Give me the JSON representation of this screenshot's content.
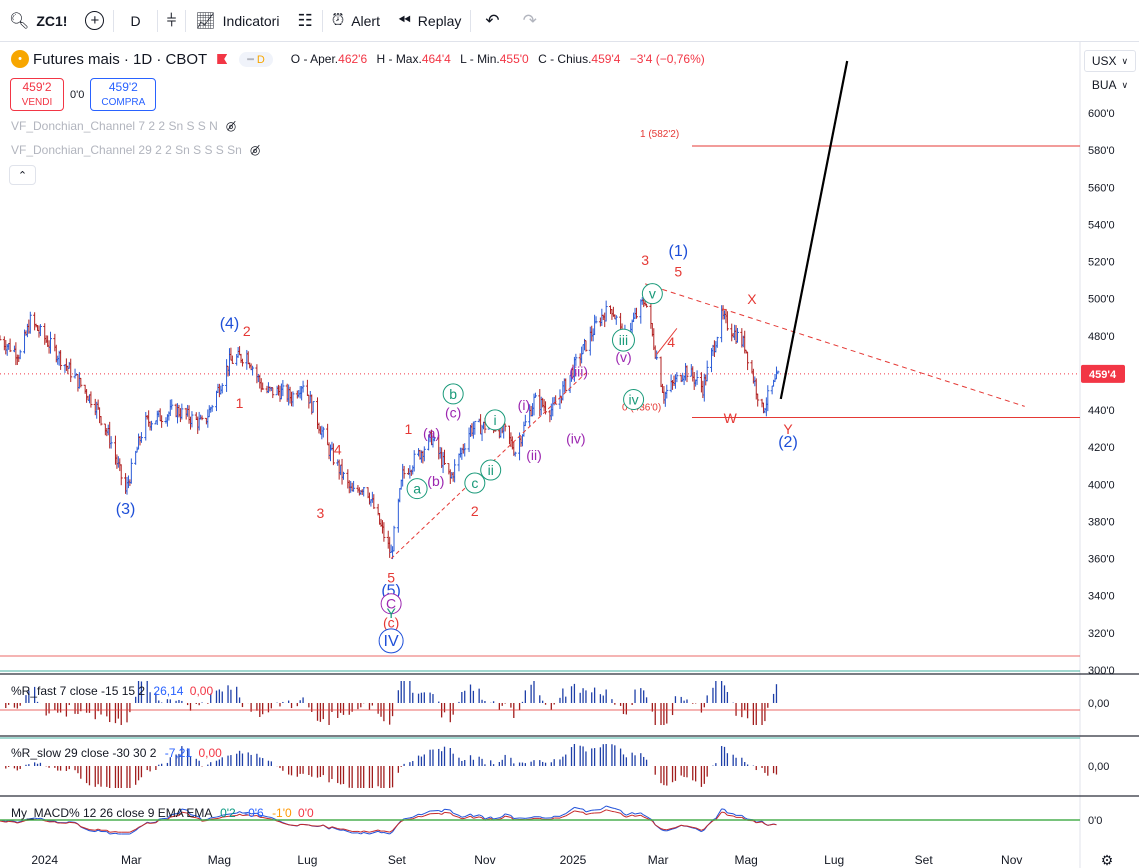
{
  "toolbar": {
    "symbol": "ZC1!",
    "interval": "D",
    "indicators_label": "Indicatori",
    "alert_label": "Alert",
    "replay_label": "Replay"
  },
  "legend": {
    "title": "Futures mais · 1D · CBOT",
    "pill": "D",
    "open_key": "O - Aper.",
    "open_val": "462'6",
    "high_key": "H - Max.",
    "high_val": "464'4",
    "low_key": "L - Min.",
    "low_val": "455'0",
    "close_key": "C - Chius.",
    "close_val": "459'4",
    "change": "−3'4 (−0,76%)"
  },
  "trade": {
    "sell_price": "459'2",
    "sell_label": "VENDI",
    "spread": "0'0",
    "buy_price": "459'2",
    "buy_label": "COMPRA"
  },
  "indicators": {
    "donchian_fast": "VF_Donchian_Channel 7 2 2 Sn S S N",
    "donchian_slow": "VF_Donchian_Channel 29 2 2 Sn S S S Sn"
  },
  "scale": {
    "currency": "USX",
    "unit": "BUA"
  },
  "colors": {
    "up": "#2a5bd7",
    "down": "#b22222",
    "wave_red": "#e53935",
    "wave_blue": "#1e4fd8",
    "wave_green": "#1a9a7a",
    "wave_purple": "#9c27b0",
    "price_line": "#f23645"
  },
  "chart_data": [
    {
      "type": "candlestick",
      "title": "Futures mais · 1D · CBOT",
      "price_scale": {
        "ylim": [
          296,
          624
        ],
        "ticks": [
          "300'0",
          "320'0",
          "340'0",
          "360'0",
          "380'0",
          "400'0",
          "420'0",
          "440'0",
          "460'0",
          "480'0",
          "500'0",
          "520'0",
          "540'0",
          "560'0",
          "580'0",
          "600'0"
        ]
      },
      "x_ticks": [
        "2024",
        "Mar",
        "Mag",
        "Lug",
        "Set",
        "Nov",
        "2025",
        "Mar",
        "Mag",
        "Lug",
        "Set",
        "Nov"
      ],
      "last_price": "459'4",
      "last_price_value": 459.5,
      "price_path": [
        {
          "date": "2023-12-01",
          "price": 478
        },
        {
          "date": "2023-12-15",
          "price": 470
        },
        {
          "date": "2023-12-22",
          "price": 488
        },
        {
          "date": "2024-01-10",
          "price": 470
        },
        {
          "date": "2024-02-05",
          "price": 443
        },
        {
          "date": "2024-02-15",
          "price": 425
        },
        {
          "date": "2024-02-26",
          "price": 396
        },
        {
          "date": "2024-03-10",
          "price": 433
        },
        {
          "date": "2024-04-01",
          "price": 440
        },
        {
          "date": "2024-04-20",
          "price": 432
        },
        {
          "date": "2024-05-08",
          "price": 466
        },
        {
          "date": "2024-05-20",
          "price": 470
        },
        {
          "date": "2024-06-01",
          "price": 450
        },
        {
          "date": "2024-06-12",
          "price": 450
        },
        {
          "date": "2024-06-20",
          "price": 447
        },
        {
          "date": "2024-06-28",
          "price": 455
        },
        {
          "date": "2024-07-15",
          "price": 420
        },
        {
          "date": "2024-08-01",
          "price": 395
        },
        {
          "date": "2024-08-10",
          "price": 400
        },
        {
          "date": "2024-08-28",
          "price": 362
        },
        {
          "date": "2024-09-05",
          "price": 405
        },
        {
          "date": "2024-09-25",
          "price": 425
        },
        {
          "date": "2024-10-08",
          "price": 403
        },
        {
          "date": "2024-10-22",
          "price": 430
        },
        {
          "date": "2024-11-05",
          "price": 432
        },
        {
          "date": "2024-11-15",
          "price": 428
        },
        {
          "date": "2024-11-22",
          "price": 418
        },
        {
          "date": "2024-12-05",
          "price": 445
        },
        {
          "date": "2024-12-18",
          "price": 440
        },
        {
          "date": "2025-01-05",
          "price": 468
        },
        {
          "date": "2025-01-20",
          "price": 490
        },
        {
          "date": "2025-01-28",
          "price": 495
        },
        {
          "date": "2025-02-05",
          "price": 478
        },
        {
          "date": "2025-02-20",
          "price": 500
        },
        {
          "date": "2025-03-05",
          "price": 448
        },
        {
          "date": "2025-03-20",
          "price": 462
        },
        {
          "date": "2025-04-01",
          "price": 452
        },
        {
          "date": "2025-04-14",
          "price": 490
        },
        {
          "date": "2025-04-30",
          "price": 475
        },
        {
          "date": "2025-05-12",
          "price": 440
        },
        {
          "date": "2025-05-24",
          "price": 459.5
        }
      ],
      "horizontal_levels": [
        {
          "value": 582.2,
          "label": "1 (582'2)"
        },
        {
          "value": 436.0,
          "label": "0 (436'0)"
        }
      ],
      "projection": [
        {
          "date": "2025-05-25",
          "price": 446
        },
        {
          "date": "2025-07-10",
          "price": 628
        }
      ],
      "trendline": [
        {
          "date": "2025-02-20",
          "price": 508
        },
        {
          "date": "2025-11-10",
          "price": 442
        }
      ],
      "wave_labels": [
        {
          "text": "(3)",
          "date": "2024-02-26",
          "price": 384,
          "color": "blue"
        },
        {
          "text": "(4)",
          "date": "2024-05-08",
          "price": 484,
          "color": "blue"
        },
        {
          "text": "2",
          "date": "2024-05-20",
          "price": 480,
          "color": "red"
        },
        {
          "text": "1",
          "date": "2024-05-15",
          "price": 441,
          "color": "red"
        },
        {
          "text": "4",
          "date": "2024-07-22",
          "price": 416,
          "color": "red"
        },
        {
          "text": "3",
          "date": "2024-07-10",
          "price": 382,
          "color": "red"
        },
        {
          "text": "5",
          "date": "2024-08-28",
          "price": 347,
          "color": "red"
        },
        {
          "text": "(5)",
          "date": "2024-08-28",
          "price": 340,
          "color": "blue"
        },
        {
          "text": "C",
          "date": "2024-08-28",
          "price": 333,
          "color": "purple"
        },
        {
          "text": "Y",
          "date": "2024-08-28",
          "price": 328,
          "color": "green"
        },
        {
          "text": "(c)",
          "date": "2024-08-28",
          "price": 323,
          "color": "red"
        },
        {
          "text": "IV",
          "date": "2024-08-28",
          "price": 313,
          "color": "blue"
        },
        {
          "text": "1",
          "date": "2024-09-09",
          "price": 427,
          "color": "red"
        },
        {
          "text": "(a)",
          "date": "2024-09-25",
          "price": 425,
          "color": "purple"
        },
        {
          "text": "(b)",
          "date": "2024-09-28",
          "price": 399,
          "color": "purple"
        },
        {
          "text": "a",
          "date": "2024-09-15",
          "price": 395,
          "color": "green"
        },
        {
          "text": "b",
          "date": "2024-10-10",
          "price": 446,
          "color": "green"
        },
        {
          "text": "(c)",
          "date": "2024-10-10",
          "price": 436,
          "color": "purple"
        },
        {
          "text": "c",
          "date": "2024-10-25",
          "price": 398,
          "color": "green"
        },
        {
          "text": "2",
          "date": "2024-10-25",
          "price": 383,
          "color": "red"
        },
        {
          "text": "i",
          "date": "2024-11-08",
          "price": 432,
          "color": "green"
        },
        {
          "text": "ii",
          "date": "2024-11-05",
          "price": 405,
          "color": "green"
        },
        {
          "text": "(i)",
          "date": "2024-11-28",
          "price": 440,
          "color": "purple"
        },
        {
          "text": "(ii)",
          "date": "2024-12-05",
          "price": 413,
          "color": "purple"
        },
        {
          "text": "(iii)",
          "date": "2025-01-05",
          "price": 458,
          "color": "purple"
        },
        {
          "text": "(iv)",
          "date": "2025-01-03",
          "price": 422,
          "color": "purple"
        },
        {
          "text": "iii",
          "date": "2025-02-05",
          "price": 475,
          "color": "green"
        },
        {
          "text": "(v)",
          "date": "2025-02-05",
          "price": 466,
          "color": "purple"
        },
        {
          "text": "iv",
          "date": "2025-02-12",
          "price": 443,
          "color": "green"
        },
        {
          "text": "v",
          "date": "2025-02-25",
          "price": 500,
          "color": "green"
        },
        {
          "text": "3",
          "date": "2025-02-20",
          "price": 518,
          "color": "red"
        },
        {
          "text": "(1)",
          "date": "2025-03-15",
          "price": 523,
          "color": "blue"
        },
        {
          "text": "5",
          "date": "2025-03-15",
          "price": 512,
          "color": "red"
        },
        {
          "text": "4",
          "date": "2025-03-10",
          "price": 474,
          "color": "red"
        },
        {
          "text": "X",
          "date": "2025-05-05",
          "price": 497,
          "color": "red"
        },
        {
          "text": "W",
          "date": "2025-04-20",
          "price": 433,
          "color": "red"
        },
        {
          "text": "Y",
          "date": "2025-05-30",
          "price": 427,
          "color": "red"
        },
        {
          "text": "(2)",
          "date": "2025-05-30",
          "price": 420,
          "color": "blue"
        }
      ]
    },
    {
      "type": "histogram",
      "title": "%R_fast 7 close -15 15 2",
      "value_label": "26,14",
      "value_label_2": "0,00",
      "axis_tick": "0,00",
      "ylim": [
        -15,
        15
      ]
    },
    {
      "type": "histogram",
      "title": "%R_slow 29 close -30 30 2",
      "value_label": "-7,21",
      "value_label_2": "0,00",
      "axis_tick": "0,00",
      "ylim": [
        -30,
        30
      ]
    },
    {
      "type": "line",
      "title": "My_MACD% 12 26 close 9 EMA EMA",
      "value_label": "0'2",
      "value_label_2": "-0'6",
      "value_label_3": "-1'0",
      "value_label_4": "0'0",
      "axis_tick": "0'0"
    }
  ]
}
